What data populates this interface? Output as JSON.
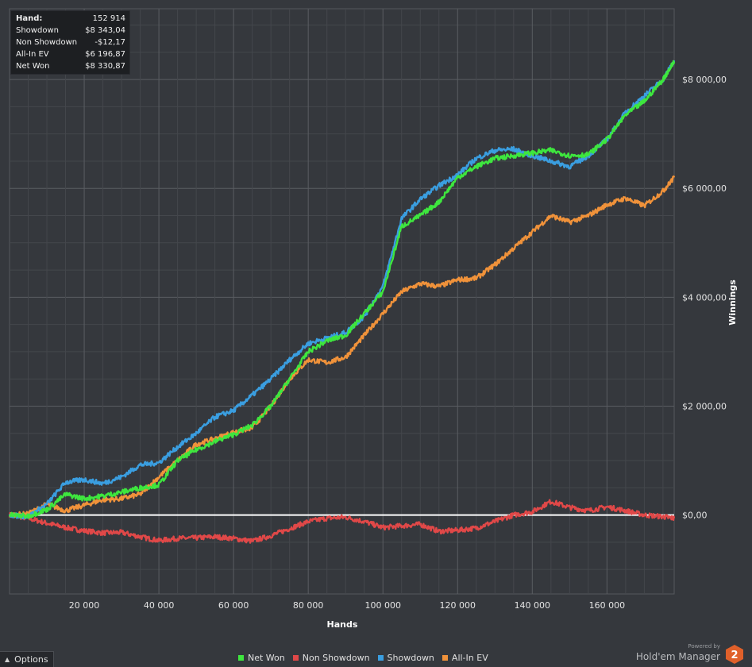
{
  "stats": {
    "rows": [
      {
        "label": "Hand:",
        "value": "152 914"
      },
      {
        "label": "Showdown",
        "value": "$8 343,04"
      },
      {
        "label": "Non Showdown",
        "value": "-$12,17"
      },
      {
        "label": "All-In EV",
        "value": "$6 196,87"
      },
      {
        "label": "Net Won",
        "value": "$8 330,87"
      }
    ]
  },
  "legend": [
    {
      "label": "Net Won",
      "color": "#3ee63e"
    },
    {
      "label": "Non Showdown",
      "color": "#e04848"
    },
    {
      "label": "Showdown",
      "color": "#3a9ee0"
    },
    {
      "label": "All-In EV",
      "color": "#f0923a"
    }
  ],
  "options": {
    "label": "Options"
  },
  "brand": {
    "powered_by": "Powered by",
    "name": "Hold'em Manager",
    "badge": "2"
  },
  "chart_data": {
    "type": "line",
    "xlabel": "Hands",
    "ylabel": "Winnings",
    "xlim": [
      0,
      178000
    ],
    "ylim": [
      -1450,
      9300
    ],
    "x_ticks": [
      20000,
      40000,
      60000,
      80000,
      100000,
      120000,
      140000,
      160000
    ],
    "x_tick_labels": [
      "20 000",
      "40 000",
      "60 000",
      "80 000",
      "100 000",
      "120 000",
      "140 000",
      "160 000"
    ],
    "y_ticks": [
      0,
      2000,
      4000,
      6000,
      8000
    ],
    "y_tick_labels": [
      "$0,00",
      "$2 000,00",
      "$4 000,00",
      "$6 000,00",
      "$8 000,00"
    ],
    "grid": true,
    "series": [
      {
        "name": "Non Showdown",
        "color": "#e04848",
        "x": [
          0,
          5000,
          10000,
          15000,
          20000,
          25000,
          30000,
          35000,
          40000,
          45000,
          50000,
          55000,
          60000,
          65000,
          70000,
          75000,
          80000,
          85000,
          90000,
          95000,
          100000,
          105000,
          110000,
          115000,
          120000,
          125000,
          130000,
          135000,
          140000,
          145000,
          150000,
          155000,
          160000,
          165000,
          170000,
          175000,
          178000
        ],
        "y": [
          0,
          -60,
          -150,
          -230,
          -290,
          -330,
          -320,
          -400,
          -470,
          -430,
          -420,
          -400,
          -430,
          -480,
          -380,
          -250,
          -120,
          -60,
          -40,
          -120,
          -230,
          -200,
          -170,
          -300,
          -280,
          -240,
          -120,
          0,
          60,
          250,
          140,
          80,
          150,
          80,
          0,
          -30,
          -60
        ]
      },
      {
        "name": "All-In EV",
        "color": "#f0923a",
        "x": [
          0,
          5000,
          10000,
          15000,
          20000,
          25000,
          30000,
          35000,
          40000,
          45000,
          50000,
          55000,
          60000,
          65000,
          70000,
          75000,
          80000,
          85000,
          90000,
          95000,
          100000,
          105000,
          110000,
          115000,
          120000,
          125000,
          130000,
          135000,
          140000,
          145000,
          150000,
          155000,
          160000,
          165000,
          170000,
          175000,
          178000
        ],
        "y": [
          0,
          20,
          200,
          80,
          180,
          280,
          300,
          380,
          700,
          1000,
          1300,
          1400,
          1520,
          1600,
          2000,
          2500,
          2850,
          2800,
          2900,
          3300,
          3700,
          4100,
          4250,
          4200,
          4320,
          4350,
          4600,
          4900,
          5200,
          5500,
          5380,
          5500,
          5700,
          5820,
          5680,
          5950,
          6200
        ]
      },
      {
        "name": "Showdown",
        "color": "#3a9ee0",
        "x": [
          0,
          5000,
          10000,
          15000,
          20000,
          25000,
          30000,
          35000,
          40000,
          45000,
          50000,
          55000,
          60000,
          65000,
          70000,
          75000,
          80000,
          85000,
          90000,
          95000,
          100000,
          105000,
          110000,
          115000,
          120000,
          125000,
          130000,
          135000,
          140000,
          145000,
          150000,
          155000,
          160000,
          165000,
          170000,
          175000,
          178000
        ],
        "y": [
          0,
          -30,
          200,
          600,
          650,
          580,
          700,
          920,
          960,
          1250,
          1500,
          1800,
          1920,
          2200,
          2500,
          2850,
          3150,
          3250,
          3350,
          3650,
          4200,
          5450,
          5800,
          6050,
          6250,
          6550,
          6700,
          6720,
          6600,
          6500,
          6400,
          6600,
          6900,
          7400,
          7700,
          8000,
          8350
        ]
      },
      {
        "name": "Net Won",
        "color": "#3ee63e",
        "x": [
          0,
          5000,
          10000,
          15000,
          20000,
          25000,
          30000,
          35000,
          40000,
          45000,
          50000,
          55000,
          60000,
          65000,
          70000,
          75000,
          80000,
          85000,
          90000,
          95000,
          100000,
          105000,
          110000,
          115000,
          120000,
          125000,
          130000,
          135000,
          140000,
          145000,
          150000,
          155000,
          160000,
          165000,
          170000,
          175000,
          178000
        ],
        "y": [
          0,
          -20,
          100,
          380,
          300,
          350,
          420,
          500,
          550,
          1000,
          1200,
          1350,
          1480,
          1650,
          2000,
          2500,
          3000,
          3200,
          3300,
          3700,
          4100,
          5300,
          5500,
          5750,
          6200,
          6400,
          6550,
          6600,
          6650,
          6700,
          6600,
          6620,
          6900,
          7350,
          7600,
          8000,
          8330
        ]
      }
    ]
  }
}
